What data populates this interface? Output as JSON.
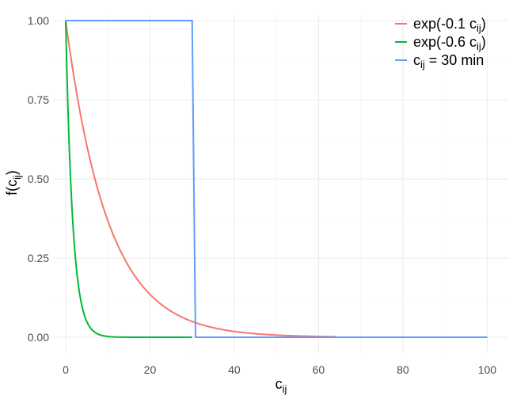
{
  "chart_data": {
    "type": "line",
    "xlabel": "c",
    "xlabel_sub": "ij",
    "ylabel": "f(c",
    "ylabel_sub": "ij",
    "ylabel_close": ")",
    "xlim": [
      -3,
      105
    ],
    "ylim": [
      -0.05,
      1.02
    ],
    "x_ticks": [
      0,
      20,
      40,
      60,
      80,
      100
    ],
    "x_tick_labels": [
      "0",
      "20",
      "40",
      "60",
      "80",
      "100"
    ],
    "y_ticks": [
      0,
      0.25,
      0.5,
      0.75,
      1
    ],
    "y_tick_labels": [
      "0.00",
      "0.25",
      "0.50",
      "0.75",
      "1.00"
    ],
    "grid": true,
    "legend_position": "top-right",
    "series": [
      {
        "key": "exp01",
        "legend": {
          "pre": "exp(-0.1 c",
          "sub": "ij",
          "post": ")"
        },
        "color": "#F8766D",
        "function": "exp",
        "rate": 0.1,
        "x_range": [
          0,
          64
        ]
      },
      {
        "key": "exp06",
        "legend": {
          "pre": "exp(-0.6 c",
          "sub": "ij",
          "post": ")"
        },
        "color": "#00BA38",
        "function": "exp",
        "rate": 0.6,
        "x_range": [
          0,
          30
        ]
      },
      {
        "key": "step30",
        "legend": {
          "pre": " c",
          "sub": "ij",
          "post": " = 30 min"
        },
        "color": "#619CFF",
        "function": "step",
        "threshold": 30,
        "x_range": [
          0,
          100
        ]
      }
    ]
  }
}
